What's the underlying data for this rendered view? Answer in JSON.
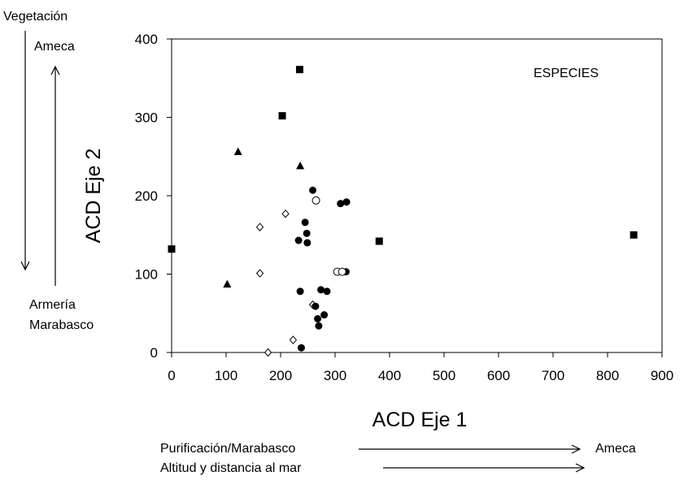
{
  "chart_data": {
    "type": "scatter",
    "title": "",
    "xlabel": "ACD Eje 1",
    "ylabel": "ACD Eje 2",
    "xlim": [
      0,
      900
    ],
    "ylim": [
      0,
      400
    ],
    "xticks": [
      0,
      100,
      200,
      300,
      400,
      500,
      600,
      700,
      800,
      900
    ],
    "yticks": [
      0,
      100,
      200,
      300,
      400
    ],
    "grid": false,
    "annotation": "ESPECIES",
    "series": [
      {
        "marker": "filled-square",
        "points": [
          {
            "x": 0,
            "y": 132
          },
          {
            "x": 203,
            "y": 302
          },
          {
            "x": 235,
            "y": 361
          },
          {
            "x": 381,
            "y": 142
          },
          {
            "x": 848,
            "y": 150
          }
        ]
      },
      {
        "marker": "filled-triangle",
        "points": [
          {
            "x": 102,
            "y": 87
          },
          {
            "x": 122,
            "y": 256
          },
          {
            "x": 236,
            "y": 238
          }
        ]
      },
      {
        "marker": "open-diamond",
        "points": [
          {
            "x": 162,
            "y": 160
          },
          {
            "x": 162,
            "y": 101
          },
          {
            "x": 177,
            "y": 0
          },
          {
            "x": 209,
            "y": 177
          },
          {
            "x": 223,
            "y": 16
          },
          {
            "x": 259,
            "y": 61
          }
        ]
      },
      {
        "marker": "filled-circle",
        "points": [
          {
            "x": 233,
            "y": 143
          },
          {
            "x": 236,
            "y": 78
          },
          {
            "x": 238,
            "y": 6
          },
          {
            "x": 245,
            "y": 166
          },
          {
            "x": 248,
            "y": 152
          },
          {
            "x": 249,
            "y": 140
          },
          {
            "x": 259,
            "y": 207
          },
          {
            "x": 264,
            "y": 59
          },
          {
            "x": 268,
            "y": 43
          },
          {
            "x": 270,
            "y": 34
          },
          {
            "x": 274,
            "y": 80
          },
          {
            "x": 280,
            "y": 48
          },
          {
            "x": 285,
            "y": 78
          },
          {
            "x": 310,
            "y": 190
          },
          {
            "x": 320,
            "y": 103
          },
          {
            "x": 321,
            "y": 192
          }
        ]
      },
      {
        "marker": "open-circle",
        "points": [
          {
            "x": 265,
            "y": 194
          },
          {
            "x": 304,
            "y": 103
          },
          {
            "x": 313,
            "y": 103
          }
        ]
      }
    ]
  },
  "annotations": {
    "vegetation_label": "Vegetación",
    "y_top": "Ameca",
    "y_bottom_1": "Armería",
    "y_bottom_2": "Marabasco",
    "x_line1_left": "Purificación/Marabasco",
    "x_line1_right": "Ameca",
    "x_line2": "Altitud y distancia al mar"
  }
}
